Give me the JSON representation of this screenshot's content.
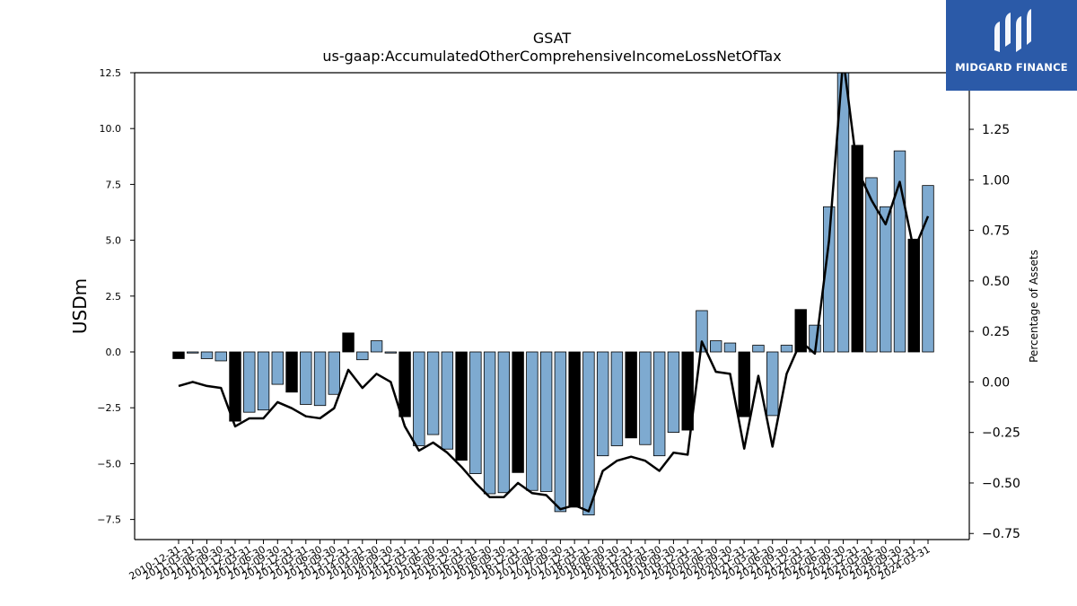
{
  "chart_data": {
    "type": "bar",
    "title": "GSAT",
    "subtitle": "us-gaap:AccumulatedOtherComprehensiveIncomeLossNetOfTax",
    "ylabel": "USDm",
    "y2label": "Percentage of Assets",
    "ylim": [
      -8.4,
      12.5
    ],
    "y2lim": [
      -0.78,
      1.53
    ],
    "yticks": [
      "−7.5",
      "−5.0",
      "−2.5",
      "0.0",
      "2.5",
      "5.0",
      "7.5",
      "10.0",
      "12.5"
    ],
    "yticks_values": [
      -7.5,
      -5.0,
      -2.5,
      0.0,
      2.5,
      5.0,
      7.5,
      10.0,
      12.5
    ],
    "y2ticks": [
      "−0.75",
      "−0.50",
      "−0.25",
      "0.00",
      "0.25",
      "0.50",
      "0.75",
      "1.00",
      "1.25"
    ],
    "y2ticks_values": [
      -0.75,
      -0.5,
      -0.25,
      0.0,
      0.25,
      0.5,
      0.75,
      1.0,
      1.25
    ],
    "categories": [
      "2010-12-31",
      "2011-03-31",
      "2011-06-30",
      "2011-09-30",
      "2011-12-31",
      "2012-03-31",
      "2012-06-30",
      "2012-09-30",
      "2012-12-31",
      "2013-03-31",
      "2013-06-30",
      "2013-09-30",
      "2013-12-31",
      "2014-03-31",
      "2014-06-30",
      "2014-09-30",
      "2014-12-31",
      "2015-03-31",
      "2015-06-30",
      "2015-09-30",
      "2015-12-31",
      "2016-03-31",
      "2016-06-30",
      "2016-09-30",
      "2016-12-31",
      "2017-03-31",
      "2017-06-30",
      "2017-09-30",
      "2017-12-31",
      "2018-03-31",
      "2018-06-30",
      "2018-09-30",
      "2018-12-31",
      "2019-03-31",
      "2019-06-30",
      "2019-09-30",
      "2019-12-31",
      "2020-03-31",
      "2020-06-30",
      "2020-09-30",
      "2020-12-31",
      "2021-03-31",
      "2021-06-30",
      "2021-09-30",
      "2021-12-31",
      "2022-03-31",
      "2022-06-30",
      "2022-09-30",
      "2022-12-31",
      "2023-03-31",
      "2023-06-30",
      "2023-09-30",
      "2023-12-31",
      "2024-03-31"
    ],
    "series": [
      {
        "type": "bar",
        "values": [
          -0.3,
          -0.05,
          -0.3,
          -0.4,
          -3.1,
          -2.7,
          -2.6,
          -1.45,
          -1.8,
          -2.35,
          -2.4,
          -1.9,
          0.85,
          -0.35,
          0.5,
          -0.05,
          -2.9,
          -4.2,
          -3.7,
          -4.35,
          -4.85,
          -5.45,
          -6.35,
          -6.3,
          -5.4,
          -6.2,
          -6.25,
          -7.15,
          -6.95,
          -7.3,
          -4.65,
          -4.2,
          -3.85,
          -4.15,
          -4.65,
          -3.6,
          -3.5,
          1.85,
          0.5,
          0.4,
          -2.9,
          0.3,
          -2.85,
          0.3,
          1.9,
          1.2,
          6.5,
          13.2,
          9.25,
          7.8,
          6.5,
          9.0,
          5.05,
          7.45
        ]
      },
      {
        "type": "line",
        "values": [
          -0.02,
          -0.0,
          -0.02,
          -0.03,
          -0.22,
          -0.18,
          -0.18,
          -0.1,
          -0.13,
          -0.17,
          -0.18,
          -0.13,
          0.06,
          -0.03,
          0.04,
          0.0,
          -0.22,
          -0.34,
          -0.3,
          -0.35,
          -0.42,
          -0.5,
          -0.57,
          -0.57,
          -0.5,
          -0.55,
          -0.56,
          -0.63,
          -0.61,
          -0.64,
          -0.44,
          -0.39,
          -0.37,
          -0.39,
          -0.44,
          -0.35,
          -0.36,
          0.2,
          0.05,
          0.04,
          -0.33,
          0.03,
          -0.32,
          0.04,
          0.2,
          0.14,
          0.7,
          1.6,
          1.05,
          0.9,
          0.78,
          0.99,
          0.65,
          0.82
        ]
      }
    ],
    "highlight_indices": [
      0,
      4,
      8,
      12,
      16,
      20,
      24,
      28,
      32,
      36,
      40,
      44,
      48,
      52
    ],
    "colors": {
      "bar": "#7eaad0",
      "bar_highlight": "#000000",
      "line": "#000000"
    }
  },
  "logo": {
    "text": "MIDGARD FINANCE",
    "background": "#2b5aa8"
  }
}
